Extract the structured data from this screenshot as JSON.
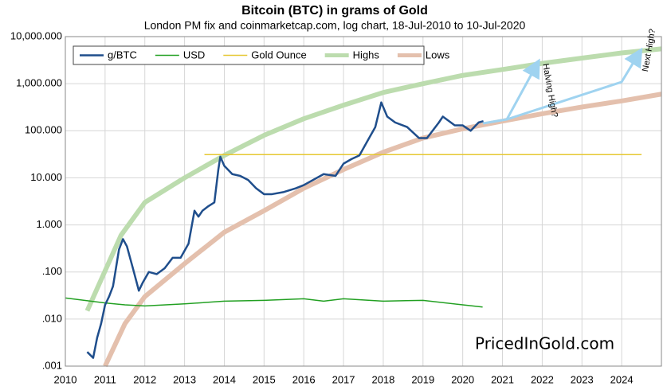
{
  "chart_data": {
    "type": "line",
    "title": "Bitcoin (BTC) in grams of Gold",
    "subtitle": "London PM fix and coinmarketcap.com, log chart, 18-Jul-2010 to 10-Jul-2020",
    "log_y": true,
    "grid": true,
    "legend": "top-left",
    "xlim": [
      2010,
      2025
    ],
    "xticks": [
      2010,
      2011,
      2012,
      2013,
      2014,
      2015,
      2016,
      2017,
      2018,
      2019,
      2020,
      2021,
      2022,
      2023,
      2024
    ],
    "ylim": [
      0.001,
      10000
    ],
    "yticks": [
      {
        "value": 0.001,
        "label": ".001"
      },
      {
        "value": 0.01,
        "label": ".010"
      },
      {
        "value": 0.1,
        "label": ".100"
      },
      {
        "value": 1,
        "label": "1.000"
      },
      {
        "value": 10,
        "label": "10.000"
      },
      {
        "value": 100,
        "label": "100.000"
      },
      {
        "value": 1000,
        "label": "1,000.000"
      },
      {
        "value": 10000,
        "label": "10,000.000"
      }
    ],
    "annotations": [
      "Halving High?",
      "Next High?",
      "PricedInGold.com"
    ],
    "series": [
      {
        "name": "g/BTC",
        "color": "#1f4e8c",
        "width": 2.5,
        "x": [
          2010.55,
          2010.7,
          2010.8,
          2010.9,
          2011.0,
          2011.1,
          2011.2,
          2011.35,
          2011.45,
          2011.55,
          2011.7,
          2011.85,
          2011.95,
          2012.1,
          2012.3,
          2012.5,
          2012.7,
          2012.9,
          2013.1,
          2013.25,
          2013.35,
          2013.45,
          2013.6,
          2013.75,
          2013.85,
          2013.9,
          2014.0,
          2014.2,
          2014.4,
          2014.6,
          2014.8,
          2015.0,
          2015.2,
          2015.5,
          2015.8,
          2016.0,
          2016.5,
          2016.8,
          2017.0,
          2017.2,
          2017.4,
          2017.6,
          2017.8,
          2017.95,
          2018.1,
          2018.3,
          2018.6,
          2018.9,
          2019.1,
          2019.4,
          2019.5,
          2019.8,
          2020.0,
          2020.2,
          2020.4,
          2020.52
        ],
        "values": [
          0.002,
          0.0015,
          0.004,
          0.008,
          0.02,
          0.03,
          0.05,
          0.3,
          0.5,
          0.35,
          0.12,
          0.04,
          0.06,
          0.1,
          0.09,
          0.12,
          0.2,
          0.2,
          0.4,
          2,
          1.5,
          2,
          2.5,
          3,
          15,
          28,
          18,
          12,
          11,
          9,
          6,
          4.5,
          4.5,
          5,
          6,
          7,
          12,
          11,
          20,
          25,
          30,
          60,
          120,
          400,
          200,
          150,
          120,
          70,
          70,
          150,
          200,
          130,
          130,
          100,
          150,
          160
        ]
      },
      {
        "name": "USD",
        "color": "#22a022",
        "width": 1.5,
        "x": [
          2010.0,
          2011.0,
          2011.5,
          2012.0,
          2013.0,
          2014.0,
          2015.0,
          2016.0,
          2016.5,
          2017.0,
          2018.0,
          2019.0,
          2020.0,
          2020.5
        ],
        "values": [
          0.028,
          0.022,
          0.02,
          0.019,
          0.021,
          0.024,
          0.025,
          0.027,
          0.024,
          0.027,
          0.024,
          0.025,
          0.02,
          0.018
        ]
      },
      {
        "name": "Gold Ounce",
        "color": "#e6c832",
        "width": 1.5,
        "x": [
          2013.5,
          2024.5
        ],
        "values": [
          31.1,
          31.1
        ]
      },
      {
        "name": "Highs",
        "color": "#bcdcae",
        "width": 6,
        "x": [
          2010.55,
          2011.4,
          2012.0,
          2013.0,
          2014.0,
          2015.0,
          2016.0,
          2017.0,
          2018.0,
          2019.0,
          2020.0,
          2021.0,
          2022.0,
          2023.0,
          2024.0,
          2025.0
        ],
        "values": [
          0.015,
          0.6,
          3,
          10,
          30,
          80,
          180,
          350,
          650,
          1000,
          1500,
          2000,
          2700,
          3500,
          4500,
          5500
        ]
      },
      {
        "name": "Lows",
        "color": "#e4c0ad",
        "width": 6,
        "x": [
          2011.0,
          2011.5,
          2012.0,
          2013.0,
          2014.0,
          2015.0,
          2016.0,
          2017.0,
          2018.0,
          2019.0,
          2020.0,
          2021.0,
          2022.0,
          2023.0,
          2024.0,
          2025.0
        ],
        "values": [
          0.001,
          0.008,
          0.03,
          0.15,
          0.7,
          2,
          6,
          15,
          35,
          70,
          110,
          160,
          230,
          320,
          430,
          600
        ]
      }
    ]
  }
}
